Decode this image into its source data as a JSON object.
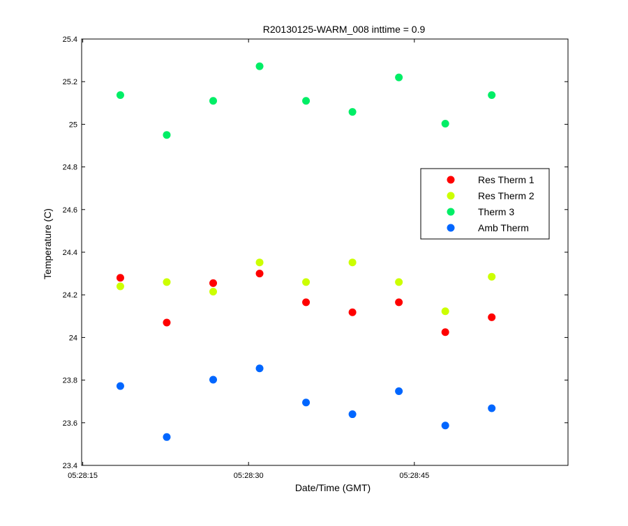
{
  "chart_data": {
    "type": "scatter",
    "title": "R20130125-WARM_008 inttime = 0.9",
    "xlabel": "Date/Time (GMT)",
    "ylabel": "Temperature (C)",
    "x_unit": "seconds past 05:28:00 GMT",
    "xlim": [
      14.9,
      58.9
    ],
    "ylim": [
      23.4,
      25.4
    ],
    "x_ticks": [
      {
        "value": 15,
        "label": "05:28:15"
      },
      {
        "value": 30,
        "label": "05:28:30"
      },
      {
        "value": 45,
        "label": "05:28:45"
      }
    ],
    "y_ticks": [
      "23.4",
      "23.6",
      "23.8",
      "24",
      "24.2",
      "24.4",
      "24.6",
      "24.8",
      "25",
      "25.2",
      "25.4"
    ],
    "x": [
      18.4,
      22.6,
      26.8,
      31.0,
      35.2,
      39.4,
      43.6,
      47.8,
      52.0
    ],
    "series": [
      {
        "name": "Res Therm 1",
        "color": "#ff0000",
        "values": [
          24.28,
          24.07,
          24.255,
          24.3,
          24.165,
          24.118,
          24.165,
          24.025,
          24.095
        ]
      },
      {
        "name": "Res Therm 2",
        "color": "#ccff00",
        "values": [
          24.24,
          24.26,
          24.215,
          24.352,
          24.26,
          24.352,
          24.26,
          24.123,
          24.285
        ]
      },
      {
        "name": "Therm 3",
        "color": "#00ee66",
        "values": [
          25.137,
          24.95,
          25.11,
          25.272,
          25.11,
          25.058,
          25.22,
          25.003,
          25.137
        ]
      },
      {
        "name": "Amb Therm",
        "color": "#0066ff",
        "values": [
          23.772,
          23.533,
          23.802,
          23.855,
          23.695,
          23.64,
          23.748,
          23.587,
          23.668
        ]
      }
    ],
    "legend_position": "right",
    "grid": false
  }
}
